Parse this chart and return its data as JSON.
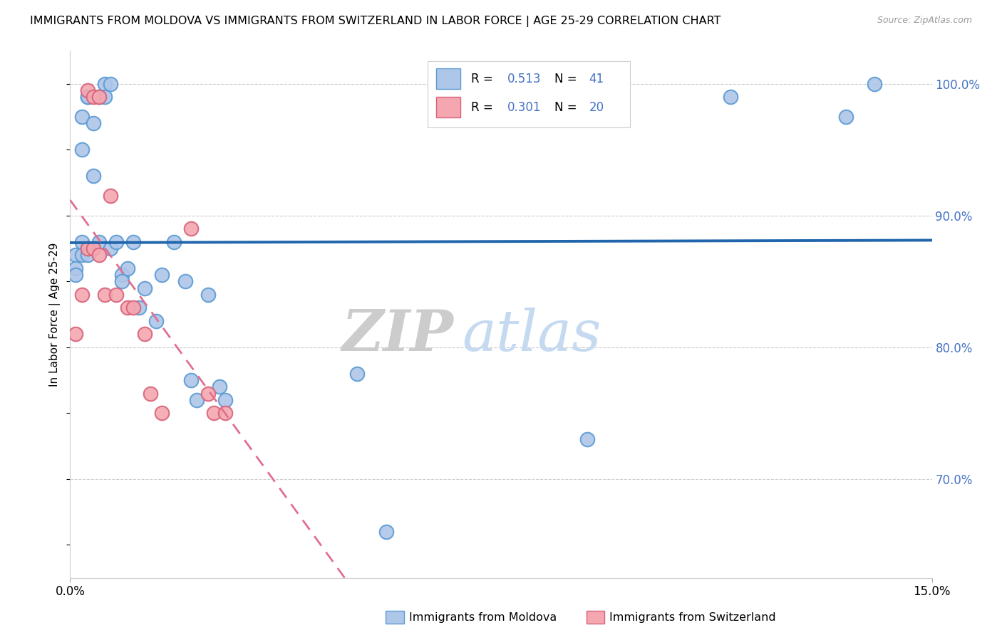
{
  "title": "IMMIGRANTS FROM MOLDOVA VS IMMIGRANTS FROM SWITZERLAND IN LABOR FORCE | AGE 25-29 CORRELATION CHART",
  "source": "Source: ZipAtlas.com",
  "ylabel": "In Labor Force | Age 25-29",
  "xmin": 0.0,
  "xmax": 0.15,
  "ymin": 0.625,
  "ymax": 1.025,
  "moldova_color_face": "#aec6e8",
  "moldova_color_edge": "#5b9bd5",
  "switzerland_color_face": "#f4a7b0",
  "switzerland_color_edge": "#d9627a",
  "trend_blue": "#2166ac",
  "trend_pink": "#e07090",
  "moldova_R": "0.513",
  "moldova_N": "41",
  "switzerland_R": "0.301",
  "switzerland_N": "20",
  "legend_label_moldova": "Immigrants from Moldova",
  "legend_label_switzerland": "Immigrants from Switzerland",
  "watermark_zip": "ZIP",
  "watermark_atlas": "atlas",
  "right_tick_color": "#4472c4",
  "moldova_x": [
    0.001,
    0.001,
    0.001,
    0.002,
    0.002,
    0.002,
    0.002,
    0.003,
    0.003,
    0.003,
    0.003,
    0.004,
    0.004,
    0.005,
    0.005,
    0.006,
    0.006,
    0.007,
    0.007,
    0.008,
    0.009,
    0.009,
    0.01,
    0.011,
    0.012,
    0.013,
    0.015,
    0.016,
    0.018,
    0.02,
    0.021,
    0.022,
    0.024,
    0.026,
    0.027,
    0.05,
    0.055,
    0.09,
    0.115,
    0.135,
    0.14
  ],
  "moldova_y": [
    0.87,
    0.86,
    0.855,
    0.88,
    0.87,
    0.975,
    0.95,
    0.99,
    0.99,
    0.875,
    0.87,
    0.93,
    0.97,
    0.99,
    0.88,
    1.0,
    0.99,
    1.0,
    0.875,
    0.88,
    0.855,
    0.85,
    0.86,
    0.88,
    0.83,
    0.845,
    0.82,
    0.855,
    0.88,
    0.85,
    0.775,
    0.76,
    0.84,
    0.77,
    0.76,
    0.78,
    0.66,
    0.73,
    0.99,
    0.975,
    1.0
  ],
  "switzerland_x": [
    0.001,
    0.002,
    0.003,
    0.003,
    0.004,
    0.004,
    0.005,
    0.005,
    0.006,
    0.007,
    0.008,
    0.01,
    0.011,
    0.013,
    0.014,
    0.016,
    0.021,
    0.024,
    0.025,
    0.027
  ],
  "switzerland_y": [
    0.81,
    0.84,
    0.875,
    0.995,
    0.875,
    0.99,
    0.99,
    0.87,
    0.84,
    0.915,
    0.84,
    0.83,
    0.83,
    0.81,
    0.765,
    0.75,
    0.89,
    0.765,
    0.75,
    0.75
  ]
}
